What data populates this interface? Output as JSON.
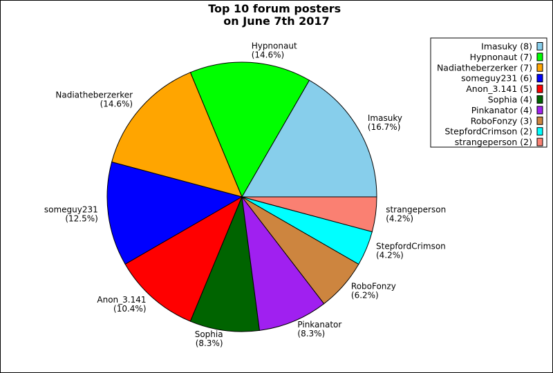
{
  "chart_data": {
    "type": "pie",
    "title": "Top 10 forum posters\non June 7th 2017",
    "start_angle_deg": 0,
    "direction": "counterclockwise",
    "legend_position": "top-right",
    "slices": [
      {
        "name": "Imasuky",
        "value": 8,
        "percent_label": "(16.7%)",
        "legend_label": "Imasuky (8)",
        "color": "#87CEEB"
      },
      {
        "name": "Hypnonaut",
        "value": 7,
        "percent_label": "(14.6%)",
        "legend_label": "Hypnonaut (7)",
        "color": "#00FF00"
      },
      {
        "name": "Nadiatheberzerker",
        "value": 7,
        "percent_label": "(14.6%)",
        "legend_label": "Nadiatheberzerker (7)",
        "color": "#FFA500"
      },
      {
        "name": "someguy231",
        "value": 6,
        "percent_label": "(12.5%)",
        "legend_label": "someguy231 (6)",
        "color": "#0000FF"
      },
      {
        "name": "Anon_3.141",
        "value": 5,
        "percent_label": "(10.4%)",
        "legend_label": "Anon_3.141 (5)",
        "color": "#FF0000"
      },
      {
        "name": "Sophia",
        "value": 4,
        "percent_label": "(8.3%)",
        "legend_label": "Sophia (4)",
        "color": "#006400"
      },
      {
        "name": "Pinkanator",
        "value": 4,
        "percent_label": "(8.3%)",
        "legend_label": "Pinkanator (4)",
        "color": "#A020F0"
      },
      {
        "name": "RoboFonzy",
        "value": 3,
        "percent_label": "(6.2%)",
        "legend_label": "RoboFonzy (3)",
        "color": "#CD853F"
      },
      {
        "name": "StepfordCrimson",
        "value": 2,
        "percent_label": "(4.2%)",
        "legend_label": "StepfordCrimson (2)",
        "color": "#00FFFF"
      },
      {
        "name": "strangeperson",
        "value": 2,
        "percent_label": "(4.2%)",
        "legend_label": "strangeperson (2)",
        "color": "#FA8072"
      }
    ]
  }
}
